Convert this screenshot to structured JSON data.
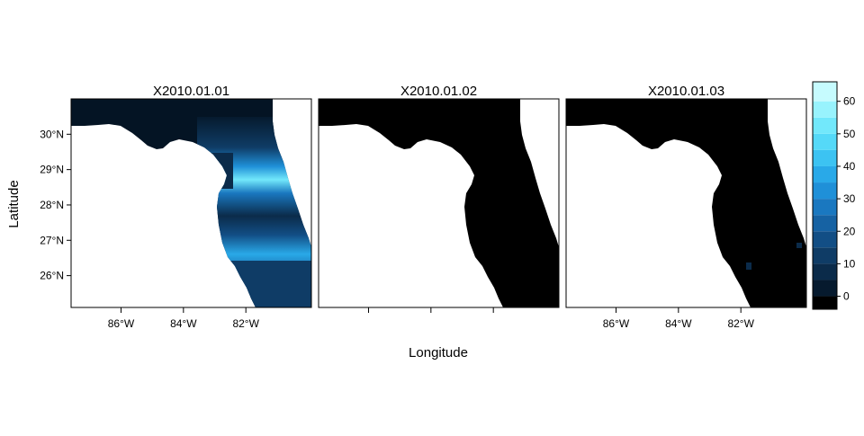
{
  "figure": {
    "x_label": "Longitude",
    "y_label": "Latitude"
  },
  "panels": [
    {
      "title": "X2010.01.01",
      "show_y_ticks": true,
      "x_ticks_position": "bottom"
    },
    {
      "title": "X2010.01.02",
      "show_y_ticks": false,
      "x_ticks_position": "bottom-unlabeled"
    },
    {
      "title": "X2010.01.03",
      "show_y_ticks": false,
      "x_ticks_position": "bottom"
    }
  ],
  "x_axis": {
    "ticks": [
      {
        "value": -86,
        "label": "86°W"
      },
      {
        "value": -84,
        "label": "84°W"
      },
      {
        "value": -82,
        "label": "82°W"
      }
    ],
    "range": [
      -87.6,
      -79.9
    ]
  },
  "y_axis": {
    "ticks": [
      {
        "value": 26,
        "label": "26°N"
      },
      {
        "value": 27,
        "label": "27°N"
      },
      {
        "value": 28,
        "label": "28°N"
      },
      {
        "value": 29,
        "label": "29°N"
      },
      {
        "value": 30,
        "label": "30°N"
      }
    ],
    "range": [
      25.1,
      31.0
    ]
  },
  "colorbar": {
    "min": -4,
    "max": 66,
    "ticks": [
      {
        "value": 0,
        "label": "0"
      },
      {
        "value": 10,
        "label": "10"
      },
      {
        "value": 20,
        "label": "20"
      },
      {
        "value": 30,
        "label": "30"
      },
      {
        "value": 40,
        "label": "40"
      },
      {
        "value": 50,
        "label": "50"
      },
      {
        "value": 60,
        "label": "60"
      }
    ],
    "bins": [
      {
        "from": -4,
        "to": 0,
        "color": "#000000"
      },
      {
        "from": 0,
        "to": 5,
        "color": "#061a2e"
      },
      {
        "from": 5,
        "to": 10,
        "color": "#0b2b4a"
      },
      {
        "from": 10,
        "to": 15,
        "color": "#0f3c66"
      },
      {
        "from": 15,
        "to": 20,
        "color": "#124e85"
      },
      {
        "from": 20,
        "to": 25,
        "color": "#1662a3"
      },
      {
        "from": 25,
        "to": 30,
        "color": "#1a78c0"
      },
      {
        "from": 30,
        "to": 35,
        "color": "#1f90d8"
      },
      {
        "from": 35,
        "to": 40,
        "color": "#29a9e8"
      },
      {
        "from": 40,
        "to": 45,
        "color": "#3cc3f2"
      },
      {
        "from": 45,
        "to": 50,
        "color": "#55d9f8"
      },
      {
        "from": 50,
        "to": 55,
        "color": "#72e8fb"
      },
      {
        "from": 55,
        "to": 60,
        "color": "#98f3fd"
      },
      {
        "from": 60,
        "to": 66,
        "color": "#c6fbfe"
      }
    ]
  }
}
